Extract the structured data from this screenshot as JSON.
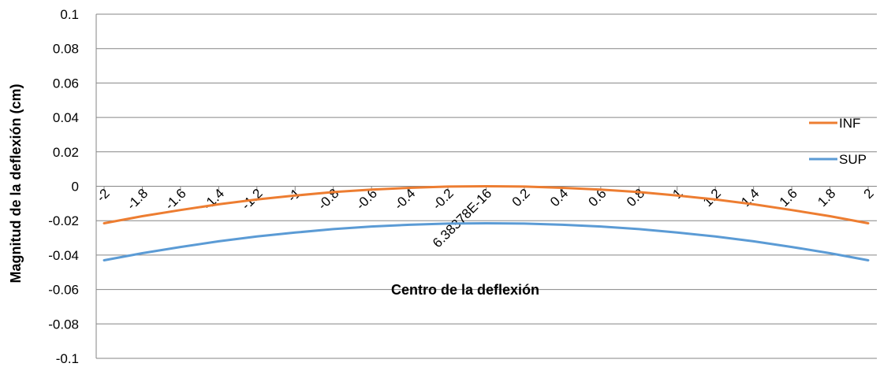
{
  "chart_data": {
    "type": "line",
    "title": "",
    "xlabel": "Centro de la deflexión",
    "ylabel": "Magnitud de la deflexión (cm)",
    "ylim": [
      -0.1,
      0.1
    ],
    "y_ticks": [
      "0.1",
      "0.08",
      "0.06",
      "0.04",
      "0.02",
      "0",
      "-0.02",
      "-0.04",
      "-0.06",
      "-0.08",
      "-0.1"
    ],
    "y_tick_values": [
      0.1,
      0.08,
      0.06,
      0.04,
      0.02,
      0,
      -0.02,
      -0.04,
      -0.06,
      -0.08,
      -0.1
    ],
    "categories": [
      "-2",
      "-1.8",
      "-1.6",
      "-1.4",
      "-1.2",
      "-1",
      "-0.8",
      "-0.6",
      "-0.4",
      "-0.2",
      "6.38378E-16",
      "0.2",
      "0.4",
      "0.6",
      "0.8",
      "1",
      "1.2",
      "1.4",
      "1.6",
      "1.8",
      "2"
    ],
    "series": [
      {
        "name": "INF",
        "color": "#ED7D31",
        "values": [
          -0.0215,
          -0.0174,
          -0.0138,
          -0.0105,
          -0.0077,
          -0.0054,
          -0.0034,
          -0.0019,
          -0.0009,
          -0.0002,
          0,
          -0.0002,
          -0.0009,
          -0.0019,
          -0.0034,
          -0.0054,
          -0.0077,
          -0.0105,
          -0.0138,
          -0.0174,
          -0.0215
        ]
      },
      {
        "name": "SUP",
        "color": "#5B9BD5",
        "values": [
          -0.043,
          -0.0389,
          -0.0353,
          -0.032,
          -0.0292,
          -0.0269,
          -0.0249,
          -0.0234,
          -0.0224,
          -0.0217,
          -0.0215,
          -0.0217,
          -0.0224,
          -0.0234,
          -0.0249,
          -0.0269,
          -0.0292,
          -0.032,
          -0.0353,
          -0.0389,
          -0.043
        ]
      }
    ],
    "grid": true,
    "legend_position": "right"
  }
}
